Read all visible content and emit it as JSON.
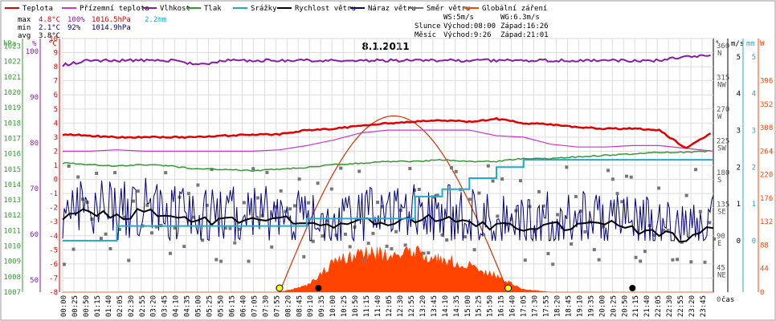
{
  "chart_data": {
    "type": "line",
    "title": "8.1.2011",
    "date": "8.1.2011",
    "x_axis_label": "čas",
    "legend": [
      {
        "name": "Teplota",
        "color": "#e00000"
      },
      {
        "name": "Přízemní teplota",
        "color": "#cc33cc"
      },
      {
        "name": "Vlhkost",
        "color": "#8a1aa8"
      },
      {
        "name": "Tlak",
        "color": "#339933"
      },
      {
        "name": "Srážky",
        "color": "#22aacc"
      },
      {
        "name": "Rychlost větru",
        "color": "#000000"
      },
      {
        "name": "Náraz větru",
        "color": "#000080"
      },
      {
        "name": "Směr větru",
        "color": "#707070"
      },
      {
        "name": "Globální záření",
        "color": "#ff4400"
      }
    ],
    "stats": {
      "max": {
        "label": "max",
        "temp": "4.8°C",
        "humidity": "100%",
        "pressure": "1016.5hPa",
        "rain": "2.2mm"
      },
      "min": {
        "label": "min",
        "temp": "2.1°C",
        "humidity": "92%",
        "pressure": "1014.9hPa"
      },
      "avg": {
        "label": "avg",
        "temp": "3.8°C"
      }
    },
    "wind_info": {
      "ws": "WS:5m/s",
      "wg": "WG:6.3m/s"
    },
    "sun": {
      "label": "Slunce",
      "rise": "Východ:08:00",
      "set": "Západ:16:26"
    },
    "moon": {
      "label": "Měsíc",
      "rise": "Východ:9:26",
      "set": "Západ:21:01"
    },
    "axes": {
      "pressure": {
        "unit": "hPa",
        "color": "#339933",
        "ticks": [
          1023,
          1022,
          1021,
          1020,
          1019,
          1018,
          1017,
          1016,
          1015,
          1014,
          1013,
          1012,
          1011,
          1010,
          1009,
          1008,
          1007
        ],
        "range": [
          1007,
          1023.5
        ]
      },
      "humidity": {
        "unit": "%",
        "color": "#8a1aa8",
        "ticks": [
          100,
          90,
          80,
          70,
          60,
          50
        ],
        "range": [
          50,
          100
        ]
      },
      "temperature": {
        "unit": "°C",
        "color": "#e00000",
        "ticks": [
          10,
          9,
          8,
          7,
          6,
          5,
          4,
          3,
          2,
          1,
          0,
          -1,
          -2,
          -3,
          -4,
          -5,
          -6,
          -7,
          -8
        ],
        "range": [
          -8,
          10
        ]
      },
      "direction": {
        "unit": "°",
        "ticks": [
          {
            "v": "360",
            "c": "N"
          },
          {
            "v": "315",
            "c": "NW"
          },
          {
            "v": "270",
            "c": "W"
          },
          {
            "v": "225",
            "c": "SW"
          },
          {
            "v": "180",
            "c": "S"
          },
          {
            "v": "135",
            "c": "SE"
          },
          {
            "v": "90",
            "c": "E"
          },
          {
            "v": "45",
            "c": "NE"
          },
          {
            "v": "0",
            "c": ""
          }
        ],
        "range": [
          0,
          360
        ]
      },
      "wind": {
        "unit": "m/s",
        "color": "#000000",
        "ticks": [
          5,
          4,
          3,
          2,
          1,
          0
        ],
        "range": [
          0,
          5
        ]
      },
      "rain": {
        "unit": "mm",
        "color": "#22aacc",
        "ticks": [
          5,
          4,
          3,
          2,
          1,
          0
        ],
        "range": [
          0,
          5
        ]
      },
      "radiation": {
        "unit": "W",
        "color": "#ff4400",
        "ticks": [
          396,
          352,
          308,
          264,
          220,
          176,
          132,
          88,
          44,
          0
        ],
        "range": [
          0,
          396
        ]
      }
    },
    "x_ticks": [
      "00:00",
      "00:25",
      "00:50",
      "01:15",
      "01:40",
      "02:05",
      "02:30",
      "02:55",
      "03:20",
      "03:45",
      "04:10",
      "04:35",
      "05:00",
      "05:25",
      "05:50",
      "06:15",
      "06:40",
      "07:05",
      "07:30",
      "07:55",
      "08:20",
      "08:45",
      "09:10",
      "09:35",
      "10:00",
      "10:25",
      "10:50",
      "11:15",
      "11:40",
      "12:05",
      "12:30",
      "12:55",
      "13:20",
      "13:45",
      "14:10",
      "14:35",
      "15:00",
      "15:25",
      "15:50",
      "16:15",
      "16:40",
      "17:05",
      "17:30",
      "17:55",
      "18:20",
      "18:45",
      "19:10",
      "19:35",
      "20:00",
      "20:25",
      "20:50",
      "21:15",
      "21:40",
      "22:05",
      "22:30",
      "22:55",
      "23:20",
      "23:45"
    ],
    "series_hourly_hours": [
      0,
      1,
      2,
      3,
      4,
      5,
      6,
      7,
      8,
      9,
      10,
      11,
      12,
      13,
      14,
      15,
      16,
      17,
      18,
      19,
      20,
      21,
      22,
      23,
      24
    ],
    "temperature_c": [
      3.2,
      3.1,
      3.0,
      3.0,
      3.0,
      3.0,
      3.1,
      3.2,
      3.2,
      3.5,
      3.6,
      3.8,
      4.0,
      4.1,
      4.2,
      4.1,
      4.3,
      4.0,
      3.9,
      3.7,
      3.6,
      3.6,
      3.5,
      2.2,
      3.4
    ],
    "ground_temp_c": [
      2.0,
      2.0,
      2.1,
      2.0,
      2.0,
      2.0,
      2.0,
      2.0,
      2.1,
      2.4,
      2.8,
      3.3,
      3.5,
      3.5,
      3.5,
      3.5,
      3.1,
      3.0,
      2.5,
      2.3,
      2.3,
      2.4,
      2.4,
      2.2,
      2.0
    ],
    "humidity_pct": [
      97,
      98,
      98,
      98,
      98,
      97,
      98,
      98,
      98,
      98,
      98,
      98,
      98,
      98,
      98,
      98,
      98,
      98,
      98,
      98,
      98,
      98,
      98,
      99,
      99
    ],
    "pressure_hpa": [
      1015.4,
      1015.3,
      1015.2,
      1015.3,
      1015.2,
      1015.0,
      1015.0,
      1014.9,
      1015.0,
      1015.1,
      1015.3,
      1015.4,
      1015.5,
      1015.5,
      1015.6,
      1015.5,
      1015.5,
      1015.7,
      1015.7,
      1015.8,
      1015.9,
      1016.0,
      1016.1,
      1016.1,
      1016.2
    ],
    "wind_speed_ms": [
      0.7,
      0.8,
      0.6,
      0.8,
      0.6,
      0.6,
      0.5,
      0.6,
      0.6,
      0.4,
      0.4,
      0.5,
      0.5,
      0.6,
      0.6,
      0.5,
      0.4,
      0.3,
      0.4,
      0.4,
      0.5,
      0.3,
      0.2,
      0.0,
      0.4
    ],
    "rain_cumulative_mm": [
      0,
      0,
      0.4,
      0.4,
      0.4,
      0.4,
      0.4,
      0.4,
      0.4,
      0.6,
      0.6,
      0.6,
      0.6,
      1.2,
      1.4,
      1.7,
      2.0,
      2.2,
      2.2,
      2.2,
      2.2,
      2.2,
      2.2,
      2.2,
      2.2
    ],
    "radiation_wm2": [
      0,
      0,
      0,
      0,
      0,
      0,
      0,
      0,
      0,
      12,
      55,
      75,
      70,
      75,
      62,
      50,
      30,
      5,
      0,
      0,
      0,
      0,
      0,
      0,
      0
    ],
    "radiation_theoretical_peak_wm2": 330,
    "events": [
      {
        "type": "sunrise",
        "time": "08:00"
      },
      {
        "type": "sunset",
        "time": "16:26"
      },
      {
        "type": "moonrise",
        "time": "09:26"
      },
      {
        "type": "moonset",
        "time": "21:01"
      }
    ]
  }
}
